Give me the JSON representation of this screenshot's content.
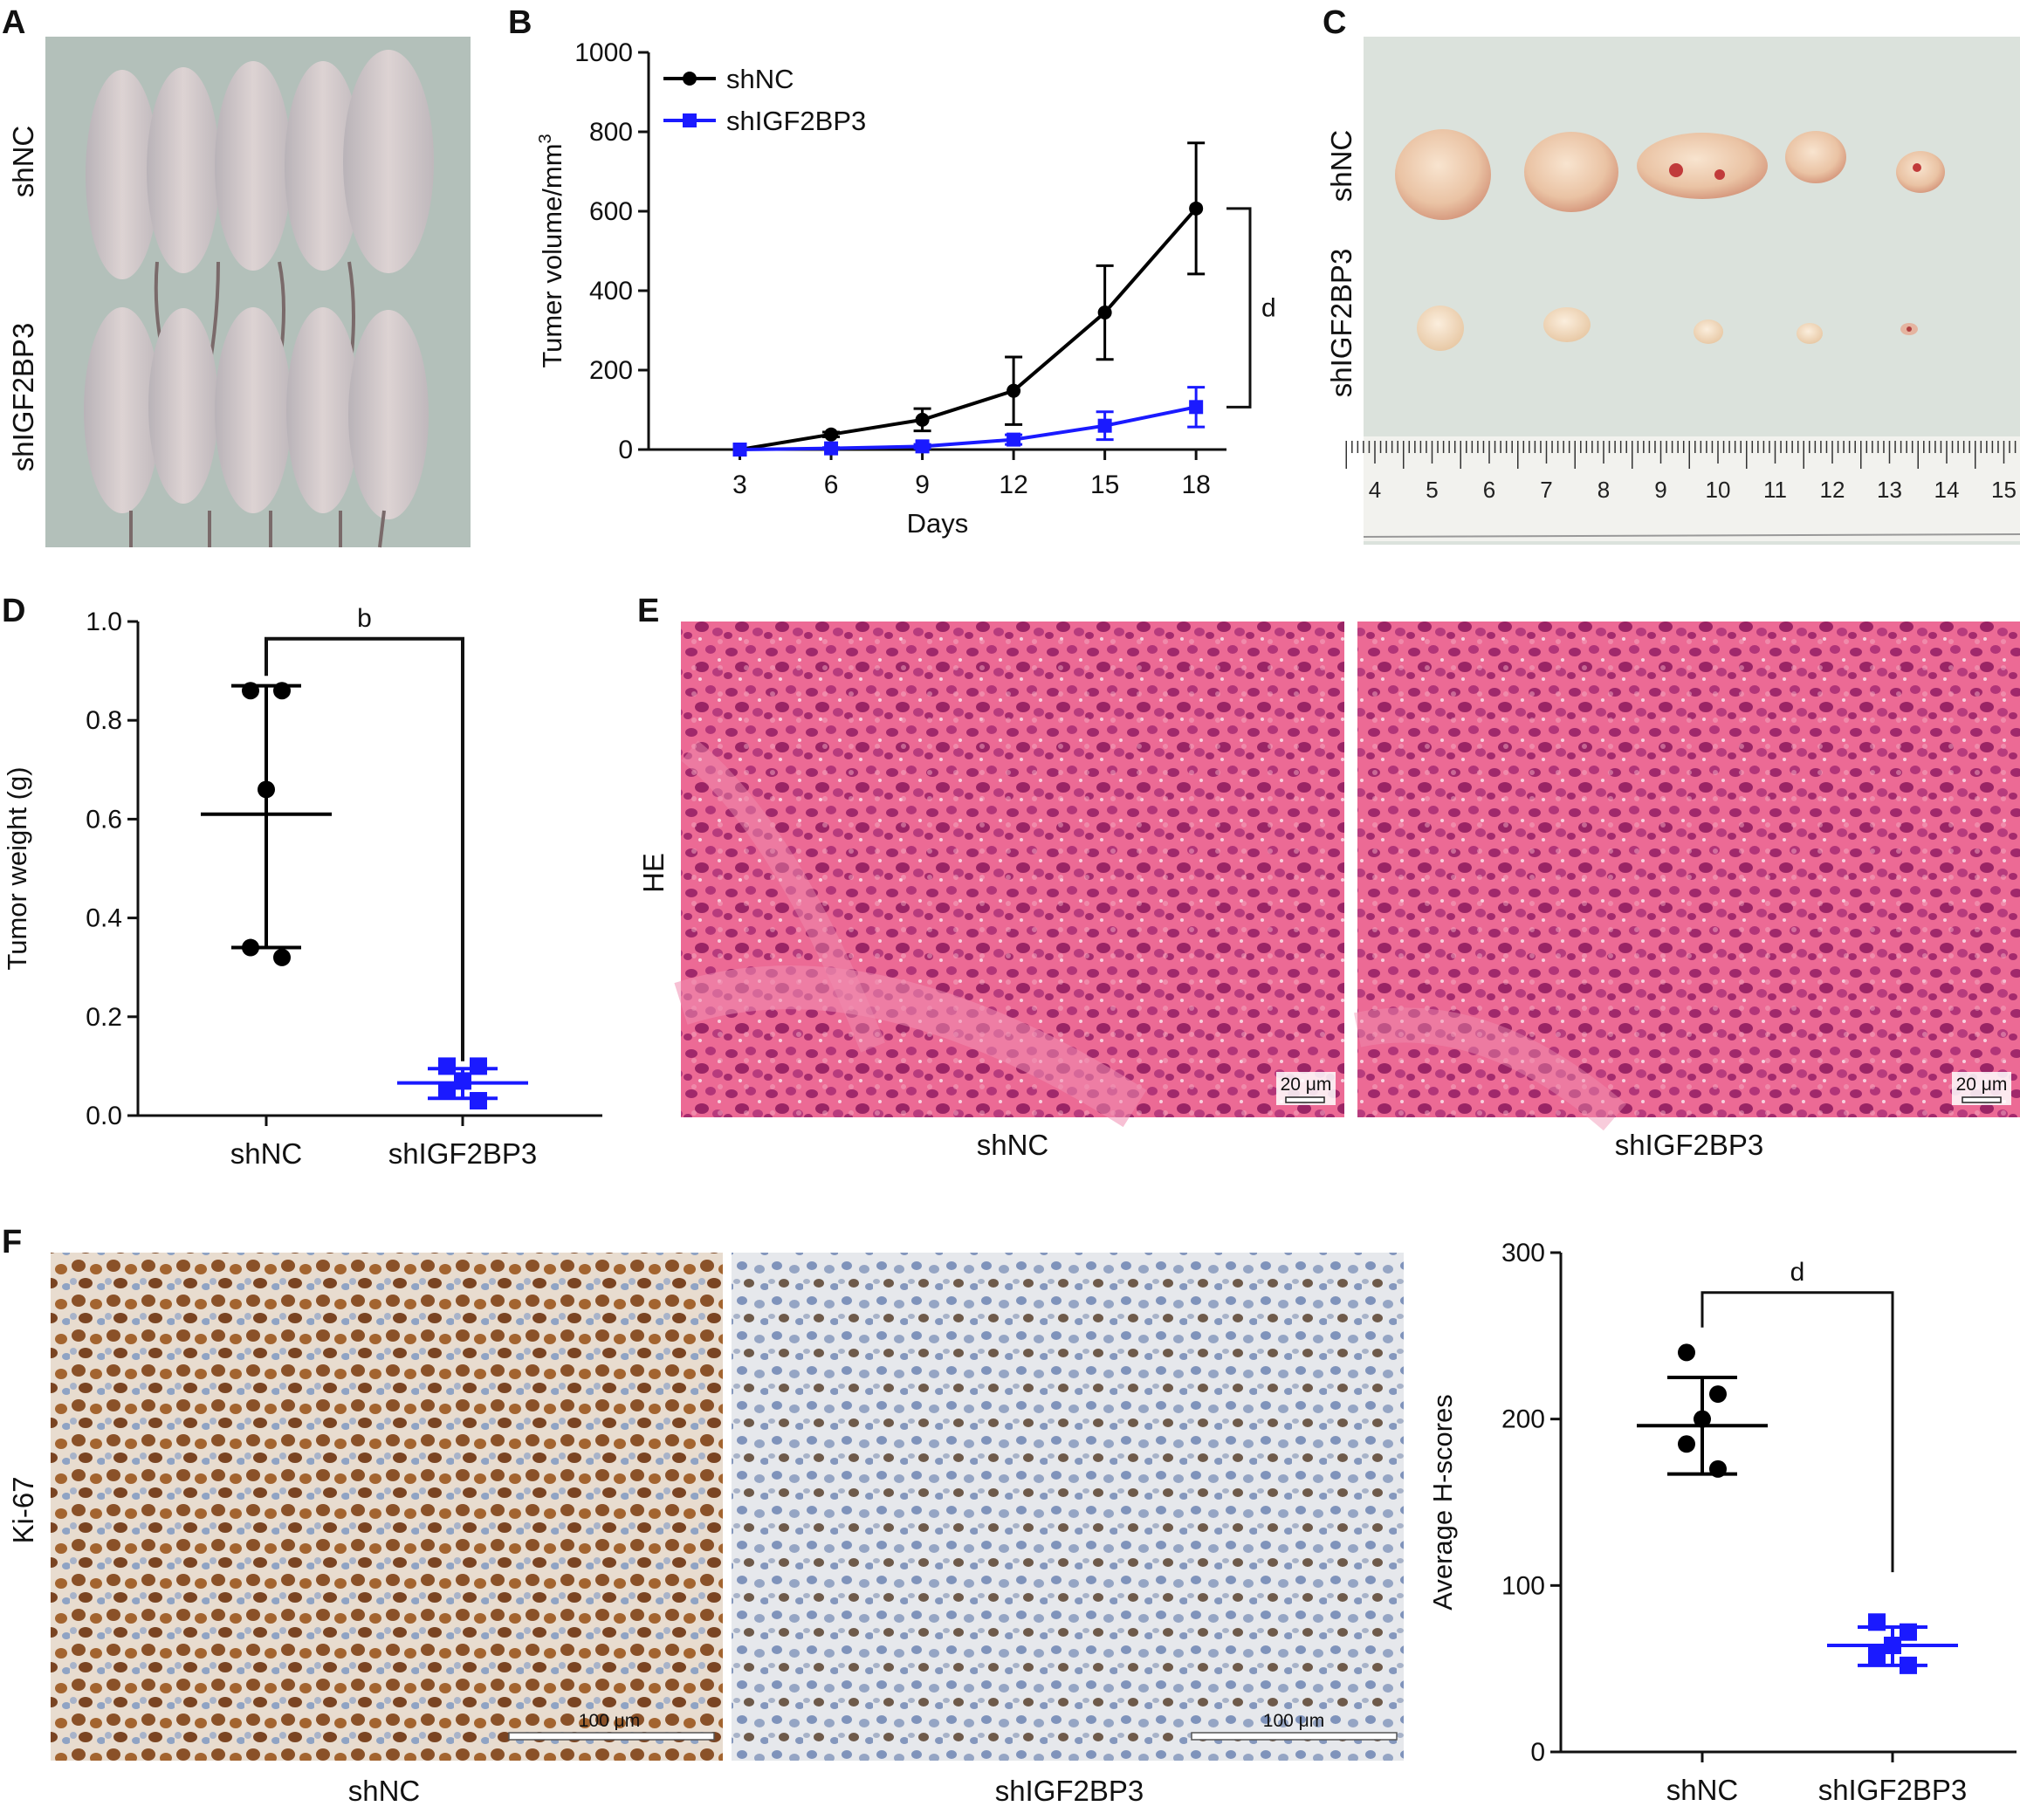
{
  "panels": {
    "A": {
      "letter": "A",
      "top_label": "shNC",
      "bottom_label": "shIGF2BP3"
    },
    "B": {
      "letter": "B"
    },
    "C": {
      "letter": "C",
      "top_label": "shNC",
      "bottom_label": "shIGF2BP3",
      "ruler_numbers": [
        "4",
        "5",
        "6",
        "7",
        "8",
        "9",
        "10",
        "11",
        "12",
        "13",
        "14",
        "15"
      ]
    },
    "D": {
      "letter": "D"
    },
    "E": {
      "letter": "E",
      "side_label": "HE",
      "left_caption": "shNC",
      "right_caption": "shIGF2BP3",
      "scale_bar": "20 μm"
    },
    "F": {
      "letter": "F",
      "side_label": "Ki-67",
      "left_caption": "shNC",
      "right_caption": "shIGF2BP3",
      "scale_bar": "100 μm"
    }
  },
  "colors": {
    "shNC": "#000000",
    "shIGF2BP3": "#1a1aff",
    "he_bg": "#e85a8a",
    "ki67_bg": "#e9ddd0"
  },
  "chart_data": [
    {
      "type": "line",
      "panel": "B",
      "xlabel": "Days",
      "ylabel": "Tumer volume/mm",
      "ylabel_sup": "3",
      "x": [
        3,
        6,
        9,
        12,
        15,
        18
      ],
      "xticks": [
        "3",
        "6",
        "9",
        "12",
        "15",
        "18"
      ],
      "yticks": [
        "0",
        "200",
        "400",
        "600",
        "800",
        "1000"
      ],
      "ylim": [
        0,
        1000
      ],
      "xlim": [
        0,
        19
      ],
      "series": [
        {
          "name": "shNC",
          "values": [
            0,
            38,
            75,
            148,
            345,
            607
          ],
          "err": [
            0,
            6,
            28,
            85,
            118,
            165
          ]
        },
        {
          "name": "shIGF2BP3",
          "values": [
            0,
            3,
            8,
            25,
            60,
            107
          ],
          "err": [
            0,
            2,
            5,
            12,
            35,
            50
          ]
        }
      ],
      "significance": "d",
      "legend": "top-left"
    },
    {
      "type": "scatter",
      "panel": "D",
      "ylabel": "Tumor weight (g)",
      "categories": [
        "shNC",
        "shIGF2BP3"
      ],
      "yticks": [
        "0.0",
        "0.2",
        "0.4",
        "0.6",
        "0.8",
        "1.0"
      ],
      "ylim": [
        0,
        1.0
      ],
      "groups": [
        {
          "name": "shNC",
          "points": [
            0.86,
            0.86,
            0.66,
            0.34,
            0.32
          ],
          "mean": 0.61,
          "sd_upper": 0.87,
          "sd_lower": 0.34
        },
        {
          "name": "shIGF2BP3",
          "points": [
            0.1,
            0.1,
            0.07,
            0.05,
            0.03
          ],
          "mean": 0.066,
          "sd_upper": 0.095,
          "sd_lower": 0.035
        }
      ],
      "significance": "b"
    },
    {
      "type": "scatter",
      "panel": "F",
      "ylabel": "Average H-scores",
      "categories": [
        "shNC",
        "shIGF2BP3"
      ],
      "yticks": [
        "0",
        "100",
        "200",
        "300"
      ],
      "ylim": [
        0,
        300
      ],
      "groups": [
        {
          "name": "shNC",
          "points": [
            240,
            215,
            200,
            185,
            170
          ],
          "mean": 196,
          "sd_upper": 225,
          "sd_lower": 167
        },
        {
          "name": "shIGF2BP3",
          "points": [
            78,
            72,
            64,
            58,
            52
          ],
          "mean": 64,
          "sd_upper": 75,
          "sd_lower": 52
        }
      ],
      "significance": "d"
    }
  ]
}
